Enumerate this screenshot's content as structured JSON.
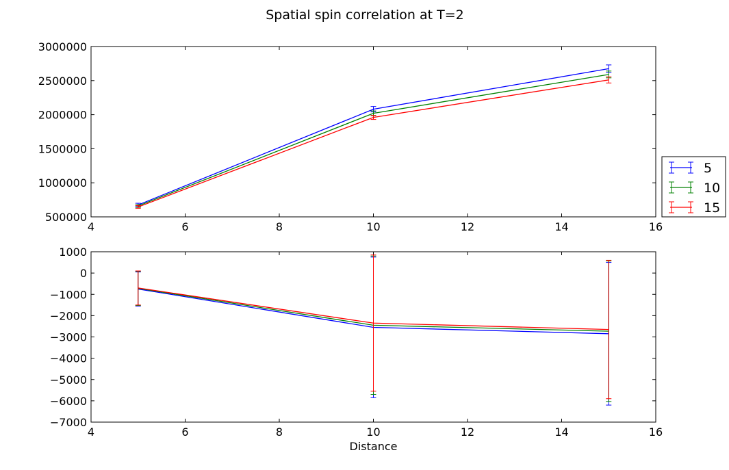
{
  "figure": {
    "title": "Spatial spin correlation at T=2"
  },
  "chart_data": [
    {
      "type": "line",
      "title": "",
      "xlabel": "",
      "ylabel": "",
      "xlim": [
        4,
        16
      ],
      "ylim": [
        500000,
        3000000
      ],
      "grid": false,
      "x_ticks": [
        "4",
        "6",
        "8",
        "10",
        "12",
        "14",
        "16"
      ],
      "y_ticks": [
        "500000",
        "1000000",
        "1500000",
        "2000000",
        "2500000",
        "3000000"
      ],
      "x": [
        5,
        10,
        15
      ],
      "series": [
        {
          "name": "5",
          "color": "#0000ff",
          "values": [
            675000,
            2080000,
            2675000
          ],
          "errors": [
            25000,
            40000,
            55000
          ]
        },
        {
          "name": "10",
          "color": "#008000",
          "values": [
            660000,
            2020000,
            2590000
          ],
          "errors": [
            20000,
            35000,
            50000
          ]
        },
        {
          "name": "15",
          "color": "#ff0000",
          "values": [
            645000,
            1960000,
            2510000
          ],
          "errors": [
            20000,
            30000,
            45000
          ]
        }
      ]
    },
    {
      "type": "line",
      "title": "",
      "xlabel": "Distance",
      "ylabel": "",
      "xlim": [
        4,
        16
      ],
      "ylim": [
        -7000,
        1000
      ],
      "grid": false,
      "x_ticks": [
        "4",
        "6",
        "8",
        "10",
        "12",
        "14",
        "16"
      ],
      "y_ticks": [
        "−7000",
        "−6000",
        "−5000",
        "−4000",
        "−3000",
        "−2000",
        "−1000",
        "0",
        "1000"
      ],
      "x": [
        5,
        10,
        15
      ],
      "series": [
        {
          "name": "5",
          "color": "#0000ff",
          "values": [
            -750,
            -2550,
            -2850
          ],
          "errors": [
            800,
            3300,
            3350
          ]
        },
        {
          "name": "10",
          "color": "#008000",
          "values": [
            -720,
            -2450,
            -2730
          ],
          "errors": [
            800,
            3250,
            3300
          ]
        },
        {
          "name": "15",
          "color": "#ff0000",
          "values": [
            -700,
            -2350,
            -2650
          ],
          "errors": [
            800,
            3200,
            3250
          ]
        }
      ]
    }
  ],
  "legend": {
    "placement": "right of top panel",
    "entries": [
      {
        "label": "5",
        "color": "#0000ff"
      },
      {
        "label": "10",
        "color": "#008000"
      },
      {
        "label": "15",
        "color": "#ff0000"
      }
    ]
  }
}
